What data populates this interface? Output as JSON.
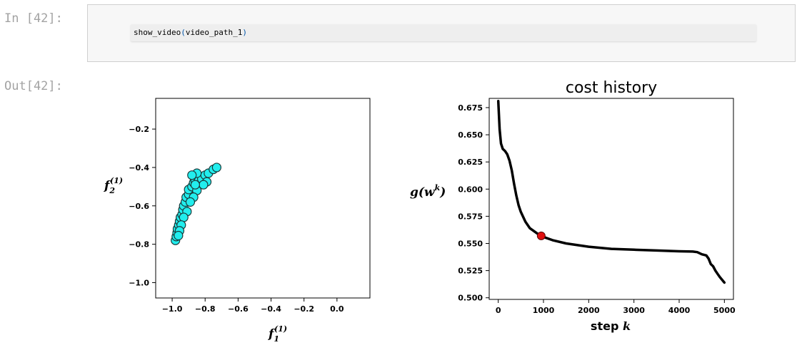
{
  "notebook": {
    "in_prompt": "In [42]:",
    "out_prompt": "Out[42]:",
    "code_func": "show_video",
    "code_open": "(",
    "code_arg": "video_path_1",
    "code_close": ")"
  },
  "chart_data": [
    {
      "type": "scatter",
      "title": "",
      "xlabel": "f",
      "xlabel_sub": "1",
      "xlabel_sup": "(1)",
      "ylabel": "f",
      "ylabel_sub": "2",
      "ylabel_sup": "(1)",
      "xlim": [
        -1.1,
        0.2
      ],
      "ylim": [
        -1.08,
        -0.04
      ],
      "xticks": [
        -1.0,
        -0.8,
        -0.6,
        -0.4,
        -0.2,
        0.0
      ],
      "xtick_labels": [
        "−1.0",
        "−0.8",
        "−0.6",
        "−0.4",
        "−0.2",
        "0.0"
      ],
      "yticks": [
        -1.0,
        -0.8,
        -0.6,
        -0.4,
        -0.2
      ],
      "ytick_labels": [
        "−1.0",
        "−0.8",
        "−0.6",
        "−0.4",
        "−0.2"
      ],
      "marker_color": "#22eeee",
      "marker_edge": "#1a3a3a",
      "points": [
        {
          "x": -0.98,
          "y": -0.78
        },
        {
          "x": -0.975,
          "y": -0.76
        },
        {
          "x": -0.97,
          "y": -0.74
        },
        {
          "x": -0.968,
          "y": -0.72
        },
        {
          "x": -0.96,
          "y": -0.7
        },
        {
          "x": -0.955,
          "y": -0.68
        },
        {
          "x": -0.95,
          "y": -0.66
        },
        {
          "x": -0.94,
          "y": -0.645
        },
        {
          "x": -0.935,
          "y": -0.62
        },
        {
          "x": -0.93,
          "y": -0.6
        },
        {
          "x": -0.92,
          "y": -0.58
        },
        {
          "x": -0.915,
          "y": -0.555
        },
        {
          "x": -0.9,
          "y": -0.54
        },
        {
          "x": -0.9,
          "y": -0.515
        },
        {
          "x": -0.88,
          "y": -0.5
        },
        {
          "x": -0.87,
          "y": -0.48
        },
        {
          "x": -0.86,
          "y": -0.47
        },
        {
          "x": -0.84,
          "y": -0.47
        },
        {
          "x": -0.82,
          "y": -0.46
        },
        {
          "x": -0.8,
          "y": -0.44
        },
        {
          "x": -0.78,
          "y": -0.43
        },
        {
          "x": -0.75,
          "y": -0.41
        },
        {
          "x": -0.73,
          "y": -0.4
        },
        {
          "x": -0.79,
          "y": -0.475
        },
        {
          "x": -0.81,
          "y": -0.49
        },
        {
          "x": -0.85,
          "y": -0.52
        },
        {
          "x": -0.87,
          "y": -0.555
        },
        {
          "x": -0.89,
          "y": -0.58
        },
        {
          "x": -0.91,
          "y": -0.63
        },
        {
          "x": -0.93,
          "y": -0.66
        },
        {
          "x": -0.945,
          "y": -0.7
        },
        {
          "x": -0.955,
          "y": -0.73
        },
        {
          "x": -0.962,
          "y": -0.755
        },
        {
          "x": -0.85,
          "y": -0.43
        },
        {
          "x": -0.88,
          "y": -0.44
        },
        {
          "x": -0.86,
          "y": -0.49
        }
      ]
    },
    {
      "type": "line",
      "title": "cost history",
      "xlabel": "step ",
      "xlabel_var": "k",
      "ylabel": "g(w",
      "ylabel_sup": "k",
      "ylabel_close": ")",
      "xlim": [
        -200,
        5200
      ],
      "ylim": [
        0.4985,
        0.6835
      ],
      "xticks": [
        0,
        1000,
        2000,
        3000,
        4000,
        5000
      ],
      "xtick_labels": [
        "0",
        "1000",
        "2000",
        "3000",
        "4000",
        "5000"
      ],
      "yticks": [
        0.5,
        0.525,
        0.55,
        0.575,
        0.6,
        0.625,
        0.65,
        0.675
      ],
      "ytick_labels": [
        "0.500",
        "0.525",
        "0.550",
        "0.575",
        "0.600",
        "0.625",
        "0.650",
        "0.675"
      ],
      "line_color": "#000000",
      "marker_color": "#e01010",
      "series": [
        {
          "x": [
            0,
            30,
            60,
            100,
            150,
            200,
            250,
            300,
            350,
            400,
            450,
            500,
            600,
            700,
            800,
            900,
            950,
            1000,
            1200,
            1500,
            2000,
            2500,
            3000,
            3500,
            4000,
            4300,
            4400,
            4500,
            4600,
            4650,
            4700,
            4750,
            4800,
            4850,
            4900,
            4950,
            5000
          ],
          "y": [
            0.681,
            0.655,
            0.642,
            0.637,
            0.635,
            0.632,
            0.626,
            0.617,
            0.605,
            0.594,
            0.585,
            0.579,
            0.57,
            0.564,
            0.561,
            0.558,
            0.557,
            0.556,
            0.553,
            0.55,
            0.547,
            0.545,
            0.5442,
            0.5435,
            0.5428,
            0.5425,
            0.542,
            0.54,
            0.539,
            0.536,
            0.531,
            0.529,
            0.525,
            0.522,
            0.519,
            0.5165,
            0.514
          ]
        }
      ],
      "highlight_point": {
        "x": 950,
        "y": 0.557
      }
    }
  ]
}
